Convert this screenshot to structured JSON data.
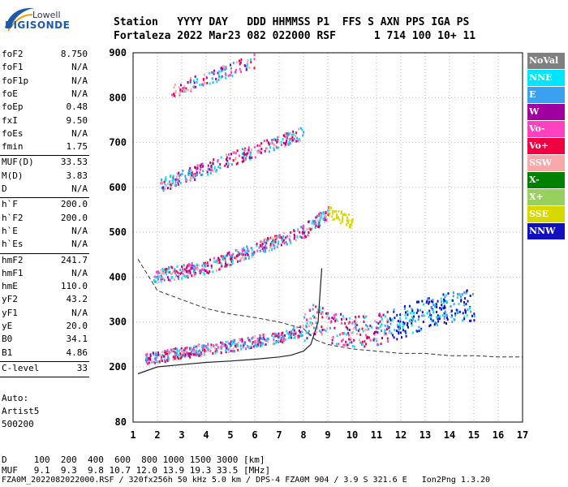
{
  "logo": {
    "top": "Lowell",
    "main": "DIGISONDE"
  },
  "header": {
    "line1": "Station   YYYY DAY   DDD HHMMSS P1  FFS S AXN PPS IGA PS",
    "line2": "Fortaleza 2022 Mar23 082 022000 RSF      1 714 100 10+ 11"
  },
  "params": [
    {
      "label": "foF2",
      "value": "8.750"
    },
    {
      "label": "foF1",
      "value": "N/A"
    },
    {
      "label": "foF1p",
      "value": "N/A"
    },
    {
      "label": "foE",
      "value": "N/A"
    },
    {
      "label": "foEp",
      "value": "0.48"
    },
    {
      "label": "fxI",
      "value": "9.50"
    },
    {
      "label": "foEs",
      "value": "N/A"
    },
    {
      "label": "fmin",
      "value": "1.75"
    },
    {
      "label": "MUF(D)",
      "value": "33.53"
    },
    {
      "label": "M(D)",
      "value": "3.83"
    },
    {
      "label": "D",
      "value": "N/A"
    },
    {
      "label": "h`F",
      "value": "200.0"
    },
    {
      "label": "h`F2",
      "value": "200.0"
    },
    {
      "label": "h`E",
      "value": "N/A"
    },
    {
      "label": "h`Es",
      "value": "N/A"
    },
    {
      "label": "hmF2",
      "value": "241.7"
    },
    {
      "label": "hmF1",
      "value": "N/A"
    },
    {
      "label": "hmE",
      "value": "110.0"
    },
    {
      "label": "yF2",
      "value": "43.2"
    },
    {
      "label": "yF1",
      "value": "N/A"
    },
    {
      "label": "yE",
      "value": "20.0"
    },
    {
      "label": "B0",
      "value": "34.1"
    },
    {
      "label": "B1",
      "value": "4.86"
    },
    {
      "label": "C-level",
      "value": "33"
    }
  ],
  "autoscaling": {
    "line1": "Auto:",
    "line2": "Artist5",
    "line3": "500200"
  },
  "legend": [
    {
      "label": "NoVal",
      "bg": "#808080",
      "fg": "#ffffff"
    },
    {
      "label": "NNE",
      "bg": "#00e5ff",
      "fg": "#ffffff"
    },
    {
      "label": "E",
      "bg": "#3aa0f0",
      "fg": "#ffffff"
    },
    {
      "label": "W",
      "bg": "#a000a0",
      "fg": "#ffffff"
    },
    {
      "label": "Vo-",
      "bg": "#ff40c0",
      "fg": "#ffffff"
    },
    {
      "label": "Vo+",
      "bg": "#f00040",
      "fg": "#ffffff"
    },
    {
      "label": "SSW",
      "bg": "#f8a8a8",
      "fg": "#ffffff"
    },
    {
      "label": "X-",
      "bg": "#008000",
      "fg": "#ffffff"
    },
    {
      "label": "X+",
      "bg": "#98d060",
      "fg": "#ffffff"
    },
    {
      "label": "SSE",
      "bg": "#d8d800",
      "fg": "#ffffff"
    },
    {
      "label": "NNW",
      "bg": "#1010c0",
      "fg": "#ffffff"
    }
  ],
  "chart_data": {
    "type": "scatter",
    "xlim": [
      1,
      17
    ],
    "ylim": [
      80,
      900
    ],
    "xticks": [
      "1",
      "2",
      "3",
      "4",
      "5",
      "6",
      "7",
      "8",
      "9",
      "10",
      "11",
      "12",
      "13",
      "14",
      "15",
      "16",
      "17"
    ],
    "yticks": [
      "80",
      "200",
      "300",
      "400",
      "500",
      "600",
      "700",
      "800",
      "900"
    ],
    "grid": true,
    "echo_traces": [
      {
        "name": "1-hop F trace",
        "x": [
          1.5,
          2,
          3,
          4,
          5,
          6,
          7,
          8,
          8.5,
          9,
          10,
          11,
          12,
          13,
          14,
          15
        ],
        "y": [
          215,
          220,
          230,
          238,
          245,
          255,
          265,
          280,
          300,
          280,
          270,
          275,
          290,
          310,
          325,
          330
        ]
      },
      {
        "name": "2-hop F trace",
        "x": [
          1.8,
          3,
          4,
          5,
          6,
          7,
          8,
          8.5,
          9,
          10
        ],
        "y": [
          400,
          410,
          420,
          440,
          460,
          480,
          500,
          520,
          540,
          520
        ]
      },
      {
        "name": "3-hop F trace",
        "x": [
          2,
          3,
          4,
          5,
          6,
          7,
          8
        ],
        "y": [
          600,
          620,
          640,
          660,
          680,
          700,
          720
        ]
      },
      {
        "name": "4-hop F trace",
        "x": [
          2.5,
          3,
          4,
          5,
          6
        ],
        "y": [
          810,
          820,
          840,
          860,
          880
        ]
      }
    ],
    "profile_line": {
      "x": [
        1.2,
        2,
        3,
        4,
        5,
        6,
        7,
        7.5,
        8,
        8.3,
        8.6,
        8.75
      ],
      "y": [
        185,
        200,
        205,
        210,
        213,
        217,
        222,
        226,
        235,
        250,
        300,
        420
      ]
    },
    "dashed_curve_left": {
      "x": [
        1.2,
        2,
        3,
        4,
        5,
        6,
        7,
        8,
        8.5
      ],
      "y": [
        440,
        370,
        350,
        330,
        318,
        310,
        300,
        285,
        260
      ]
    },
    "dashed_curve_right": {
      "x": [
        8.5,
        9,
        10,
        11,
        12,
        13,
        14,
        15,
        16,
        17
      ],
      "y": [
        260,
        250,
        240,
        235,
        230,
        230,
        225,
        225,
        222,
        222
      ]
    }
  },
  "footer": {
    "line1": "D     100  200  400  600  800 1000 1500 3000 [km]",
    "line2": "MUF   9.1  9.3  9.8 10.7 12.0 13.9 19.3 33.5 [MHz]",
    "line3": "FZA0M_2022082022000.RSF / 320fx256h 50 kHz 5.0 km / DPS-4 FZA0M 904 / 3.9 S 321.6 E   Ion2Png 1.3.20"
  }
}
